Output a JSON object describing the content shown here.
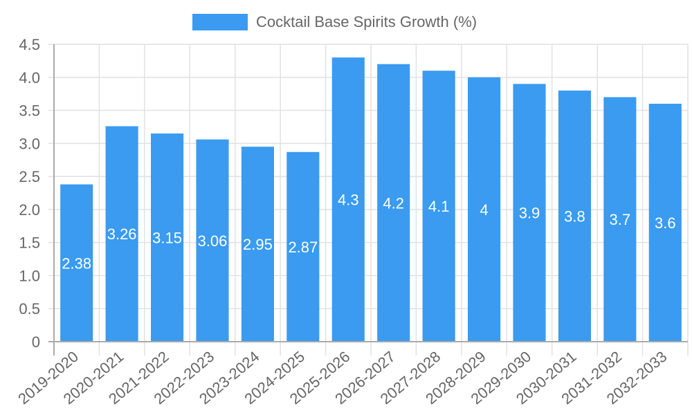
{
  "chart_data": {
    "type": "bar",
    "title": "",
    "xlabel": "",
    "ylabel": "",
    "categories": [
      "2019-2020",
      "2020-2021",
      "2021-2022",
      "2022-2023",
      "2023-2024",
      "2024-2025",
      "2025-2026",
      "2026-2027",
      "2027-2028",
      "2028-2029",
      "2029-2030",
      "2030-2031",
      "2031-2032",
      "2032-2033"
    ],
    "series": [
      {
        "name": "Cocktail Base Spirits Growth (%)",
        "values": [
          2.38,
          3.26,
          3.15,
          3.06,
          2.95,
          2.87,
          4.3,
          4.2,
          4.1,
          4,
          3.9,
          3.8,
          3.7,
          3.6
        ],
        "data_labels": [
          "2.38",
          "3.26",
          "3.15",
          "3.06",
          "2.95",
          "2.87",
          "4.3",
          "4.2",
          "4.1",
          "4",
          "3.9",
          "3.8",
          "3.7",
          "3.6"
        ],
        "color": "#3a9bf0"
      }
    ],
    "ylim": [
      0,
      4.5
    ],
    "yticks": [
      0,
      0.5,
      1.0,
      1.5,
      2.0,
      2.5,
      3.0,
      3.5,
      4.0,
      4.5
    ],
    "ytick_labels": [
      "0",
      "0.5",
      "1.0",
      "1.5",
      "2.0",
      "2.5",
      "3.0",
      "3.5",
      "4.0",
      "4.5"
    ],
    "grid": true,
    "legend_position": "top",
    "x_label_rotation": -40
  },
  "legend": {
    "label": "Cocktail Base Spirits Growth (%)",
    "swatch_color": "#3a9bf0"
  },
  "colors": {
    "bar": "#3a9bf0",
    "grid": "#e1e1e1",
    "axis": "#aaaaaa",
    "text": "#666666",
    "bar_label": "#ffffff"
  }
}
